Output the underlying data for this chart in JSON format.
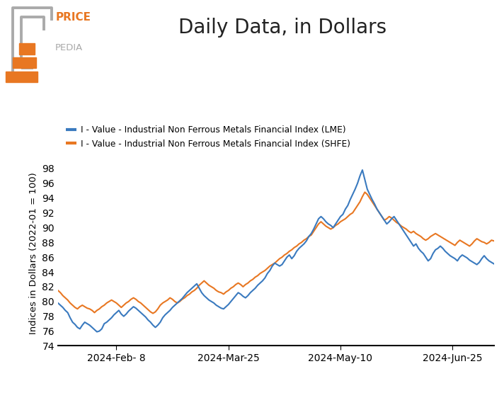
{
  "title": "Daily Data, in Dollars",
  "ylabel": "Indices in Dollars (2022-01 = 100)",
  "lme_label": "I - Value - Industrial Non Ferrous Metals Financial Index (LME)",
  "shfe_label": "I - Value - Industrial Non Ferrous Metals Financial Index (SHFE)",
  "lme_color": "#3a7abf",
  "shfe_color": "#e87722",
  "ylim": [
    74,
    99
  ],
  "yticks": [
    74,
    76,
    78,
    80,
    82,
    84,
    86,
    88,
    90,
    92,
    94,
    96,
    98
  ],
  "background_color": "#ffffff",
  "title_fontsize": 20,
  "label_fontsize": 9.5,
  "tick_fontsize": 10,
  "lme_data": [
    79.8,
    79.5,
    79.2,
    78.8,
    78.5,
    77.8,
    77.2,
    76.9,
    76.5,
    76.3,
    76.8,
    77.2,
    77.0,
    76.8,
    76.5,
    76.2,
    75.9,
    76.0,
    76.3,
    77.0,
    77.2,
    77.5,
    77.8,
    78.2,
    78.5,
    78.8,
    78.3,
    78.0,
    78.3,
    78.7,
    79.0,
    79.3,
    79.1,
    78.8,
    78.5,
    78.2,
    77.9,
    77.5,
    77.2,
    76.8,
    76.5,
    76.8,
    77.2,
    77.8,
    78.2,
    78.5,
    78.8,
    79.2,
    79.5,
    79.8,
    80.1,
    80.4,
    80.8,
    81.2,
    81.5,
    81.8,
    82.1,
    82.4,
    81.8,
    81.2,
    80.8,
    80.5,
    80.2,
    80.0,
    79.8,
    79.5,
    79.3,
    79.1,
    79.0,
    79.3,
    79.6,
    80.0,
    80.4,
    80.8,
    81.2,
    81.0,
    80.7,
    80.5,
    80.8,
    81.2,
    81.5,
    81.8,
    82.2,
    82.5,
    82.8,
    83.2,
    83.8,
    84.2,
    84.8,
    85.2,
    85.0,
    84.8,
    85.0,
    85.5,
    86.0,
    86.3,
    85.8,
    86.2,
    86.8,
    87.2,
    87.5,
    87.8,
    88.2,
    88.8,
    89.2,
    89.8,
    90.5,
    91.2,
    91.5,
    91.2,
    90.8,
    90.5,
    90.3,
    90.0,
    90.5,
    91.0,
    91.5,
    91.8,
    92.5,
    93.0,
    93.8,
    94.5,
    95.2,
    96.0,
    97.0,
    97.8,
    96.5,
    95.2,
    94.5,
    93.8,
    93.2,
    92.5,
    92.0,
    91.5,
    91.0,
    90.5,
    90.8,
    91.2,
    91.5,
    91.0,
    90.5,
    90.0,
    89.5,
    89.0,
    88.5,
    88.0,
    87.5,
    87.8,
    87.2,
    86.8,
    86.5,
    86.0,
    85.5,
    85.8,
    86.5,
    87.0,
    87.2,
    87.5,
    87.2,
    86.8,
    86.5,
    86.2,
    86.0,
    85.8,
    85.5,
    86.0,
    86.3,
    86.1,
    85.9,
    85.6,
    85.4,
    85.2,
    85.0,
    85.3,
    85.8,
    86.2,
    85.8,
    85.5,
    85.3,
    85.1
  ],
  "shfe_data": [
    81.5,
    81.2,
    80.8,
    80.5,
    80.2,
    79.8,
    79.5,
    79.2,
    79.0,
    79.3,
    79.5,
    79.3,
    79.1,
    79.0,
    78.8,
    78.5,
    78.8,
    79.0,
    79.3,
    79.5,
    79.8,
    80.0,
    80.2,
    80.0,
    79.8,
    79.5,
    79.2,
    79.5,
    79.8,
    80.0,
    80.3,
    80.5,
    80.3,
    80.0,
    79.8,
    79.5,
    79.2,
    78.9,
    78.6,
    78.4,
    78.6,
    79.0,
    79.5,
    79.8,
    80.0,
    80.2,
    80.5,
    80.3,
    80.0,
    79.8,
    80.0,
    80.3,
    80.5,
    80.8,
    81.0,
    81.3,
    81.5,
    81.8,
    82.2,
    82.5,
    82.8,
    82.5,
    82.2,
    82.0,
    81.8,
    81.5,
    81.3,
    81.2,
    81.0,
    81.3,
    81.5,
    81.8,
    82.0,
    82.3,
    82.5,
    82.3,
    82.0,
    82.3,
    82.5,
    82.8,
    83.0,
    83.3,
    83.5,
    83.8,
    84.0,
    84.2,
    84.5,
    84.8,
    85.0,
    85.2,
    85.5,
    85.8,
    86.0,
    86.3,
    86.5,
    86.8,
    87.0,
    87.3,
    87.5,
    87.8,
    88.0,
    88.3,
    88.5,
    88.8,
    89.0,
    89.5,
    90.0,
    90.5,
    90.8,
    90.5,
    90.2,
    90.0,
    89.8,
    90.0,
    90.3,
    90.5,
    90.8,
    91.0,
    91.2,
    91.5,
    91.8,
    92.0,
    92.5,
    93.0,
    93.5,
    94.2,
    94.8,
    94.5,
    94.0,
    93.5,
    93.0,
    92.5,
    92.0,
    91.5,
    91.0,
    91.2,
    91.5,
    91.3,
    91.0,
    90.7,
    90.5,
    90.2,
    90.0,
    89.8,
    89.5,
    89.3,
    89.5,
    89.2,
    89.0,
    88.8,
    88.5,
    88.3,
    88.5,
    88.8,
    89.0,
    89.2,
    89.0,
    88.8,
    88.6,
    88.4,
    88.2,
    88.0,
    87.8,
    87.6,
    88.0,
    88.3,
    88.1,
    87.9,
    87.7,
    87.5,
    87.8,
    88.2,
    88.5,
    88.3,
    88.1,
    88.0,
    87.8,
    88.0,
    88.3,
    88.2
  ],
  "x_tick_labels": [
    "2024-Feb- 8",
    "2024-Mar-25",
    "2024-May-10",
    "2024-Jun-25"
  ],
  "x_tick_positions": [
    24,
    70,
    116,
    162
  ],
  "start_date": "2024-01-15",
  "logo_gray": "#aaaaaa",
  "logo_orange": "#e87722",
  "price_color": "#e87722",
  "pedia_color": "#aaaaaa"
}
